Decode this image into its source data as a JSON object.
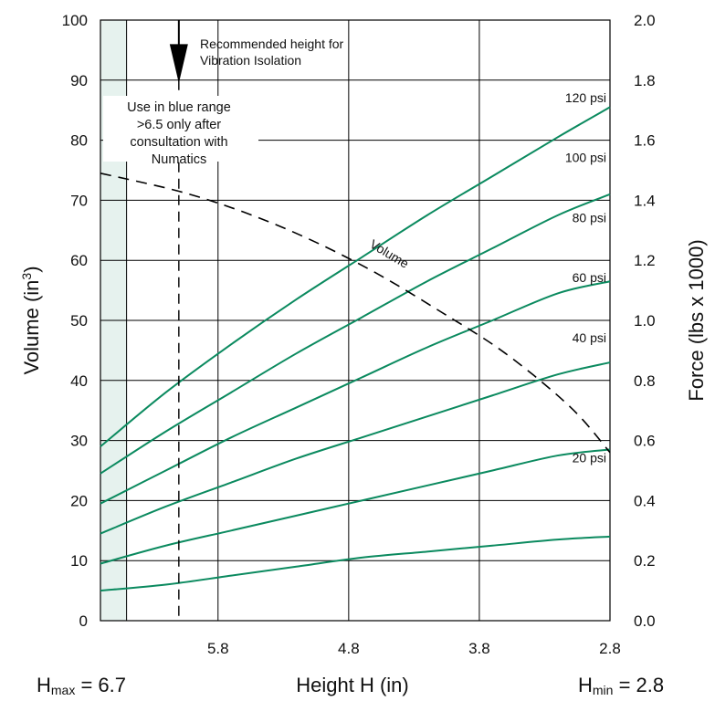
{
  "chart_data": {
    "type": "line",
    "xlabel": "Height H (in)",
    "ylabel_left": "Volume (in³)",
    "ylabel_left_main": "Volume (in",
    "ylabel_left_sup": "3",
    "ylabel_left_close": ")",
    "ylabel_right": "Force (lbs x 1000)",
    "x_range": [
      6.7,
      2.8
    ],
    "x_reversed": true,
    "x_ticks": [
      5.8,
      4.8,
      3.8,
      2.8
    ],
    "x_tick_labels": [
      "5.8",
      "4.8",
      "3.8",
      "2.8"
    ],
    "y_left_range": [
      0,
      100
    ],
    "y_left_ticks": [
      0,
      10,
      20,
      30,
      40,
      50,
      60,
      70,
      80,
      90,
      100
    ],
    "y_left_tick_labels": [
      "0",
      "10",
      "20",
      "30",
      "40",
      "50",
      "60",
      "70",
      "80",
      "90",
      "100"
    ],
    "y_right_range": [
      0,
      2.0
    ],
    "y_right_ticks": [
      0,
      0.2,
      0.4,
      0.6,
      0.8,
      1.0,
      1.2,
      1.4,
      1.6,
      1.8,
      2.0
    ],
    "y_right_tick_labels": [
      "0.0",
      "0.2",
      "0.4",
      "0.6",
      "0.8",
      "1.0",
      "1.2",
      "1.4",
      "1.6",
      "1.8",
      "2.0"
    ],
    "grid": true,
    "hmax_label": {
      "prefix": "H",
      "sub": "max",
      "suffix": " = 6.7"
    },
    "hmin_label": {
      "prefix": "H",
      "sub": "min",
      "suffix": " = 2.8"
    },
    "recommended_height": {
      "x": 6.1,
      "text_line1": "Recommended height for",
      "text_line2": "Vibration Isolation"
    },
    "blue_range": {
      "x_from": 6.7,
      "x_to": 6.5
    },
    "blue_note": [
      "Use in blue range",
      ">6.5 only after",
      "consultation with",
      "Numatics"
    ],
    "volume_series": {
      "name": "Volume",
      "axis": "left",
      "x": [
        6.7,
        6.1,
        5.6,
        5.1,
        4.6,
        4.1,
        3.6,
        3.1,
        2.8
      ],
      "y": [
        74.5,
        71.5,
        68,
        63.5,
        58,
        51.5,
        44.5,
        35.5,
        28
      ]
    },
    "series": [
      {
        "name": "120 psi",
        "axis": "right",
        "x": [
          6.7,
          6.2,
          5.7,
          5.2,
          4.7,
          4.2,
          3.7,
          3.2,
          2.8
        ],
        "y": [
          0.58,
          0.76,
          0.92,
          1.07,
          1.21,
          1.35,
          1.48,
          1.61,
          1.71
        ]
      },
      {
        "name": "100 psi",
        "axis": "right",
        "x": [
          6.7,
          6.2,
          5.7,
          5.2,
          4.7,
          4.2,
          3.7,
          3.2,
          2.8
        ],
        "y": [
          0.49,
          0.63,
          0.76,
          0.89,
          1.01,
          1.13,
          1.24,
          1.35,
          1.42
        ]
      },
      {
        "name": "80 psi",
        "axis": "right",
        "x": [
          6.7,
          6.2,
          5.7,
          5.2,
          4.7,
          4.2,
          3.7,
          3.2,
          2.8
        ],
        "y": [
          0.39,
          0.5,
          0.61,
          0.71,
          0.81,
          0.91,
          1.0,
          1.09,
          1.13
        ]
      },
      {
        "name": "60 psi",
        "axis": "right",
        "x": [
          6.7,
          6.2,
          5.7,
          5.2,
          4.7,
          4.2,
          3.7,
          3.2,
          2.8
        ],
        "y": [
          0.29,
          0.38,
          0.46,
          0.54,
          0.61,
          0.68,
          0.75,
          0.82,
          0.86
        ]
      },
      {
        "name": "40 psi",
        "axis": "right",
        "x": [
          6.7,
          6.2,
          5.7,
          5.2,
          4.7,
          4.2,
          3.7,
          3.2,
          2.8
        ],
        "y": [
          0.19,
          0.25,
          0.3,
          0.35,
          0.4,
          0.45,
          0.5,
          0.55,
          0.57
        ]
      },
      {
        "name": "20 psi",
        "axis": "right",
        "x": [
          6.7,
          6.2,
          5.7,
          5.2,
          4.7,
          4.2,
          3.7,
          3.2,
          2.8
        ],
        "y": [
          0.1,
          0.12,
          0.15,
          0.18,
          0.21,
          0.23,
          0.25,
          0.27,
          0.28
        ]
      }
    ],
    "colors": {
      "curves": "#0b8a5f",
      "blue_range_fill": "#e6f2ee",
      "grid": "#000000"
    }
  }
}
